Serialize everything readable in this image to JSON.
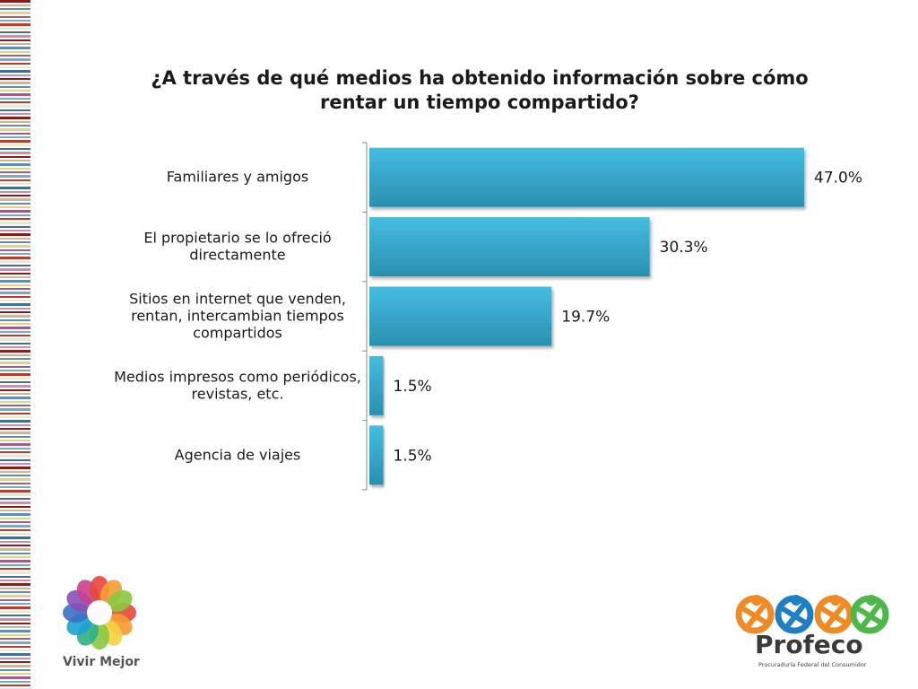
{
  "title_lines": [
    "¿A través de qué medios ha obtenido información sobre cómo",
    "rentar un tiempo compartido?"
  ],
  "chart_data": {
    "type": "bar",
    "orientation": "horizontal",
    "title": "¿A través de qué medios ha obtenido información sobre cómo rentar un tiempo compartido?",
    "categories": [
      [
        "Familiares y amigos"
      ],
      [
        "El propietario se lo ofreció",
        "directamente"
      ],
      [
        "Sitios en internet que venden,",
        "rentan, intercambian tiempos",
        "compartidos"
      ],
      [
        "Medios impresos como periódicos,",
        "revistas, etc."
      ],
      [
        "Agencia de viajes"
      ]
    ],
    "values": [
      47.0,
      30.3,
      19.7,
      1.5,
      1.5
    ],
    "value_labels": [
      "47.0%",
      "30.3%",
      "19.7%",
      "1.5%",
      "1.5%"
    ],
    "unit": "%",
    "grid": false,
    "legend": "none",
    "bar_color": "#3aaed3"
  },
  "logos": {
    "left_text": "Vivir Mejor",
    "right_name": "Profeco",
    "right_sub": "Procuraduría Federal del Consumidor"
  },
  "colors": {
    "bar_top": "#45bde0",
    "bar_bottom": "#2a8fb0",
    "stripes": [
      "#8b1a1a",
      "#d9b38c",
      "#5b8fb9",
      "#e8d27a",
      "#a35c8a",
      "#6fb0c8",
      "#c0392b",
      "#f2e6c9",
      "#3d6f99",
      "#d88aa8"
    ]
  }
}
